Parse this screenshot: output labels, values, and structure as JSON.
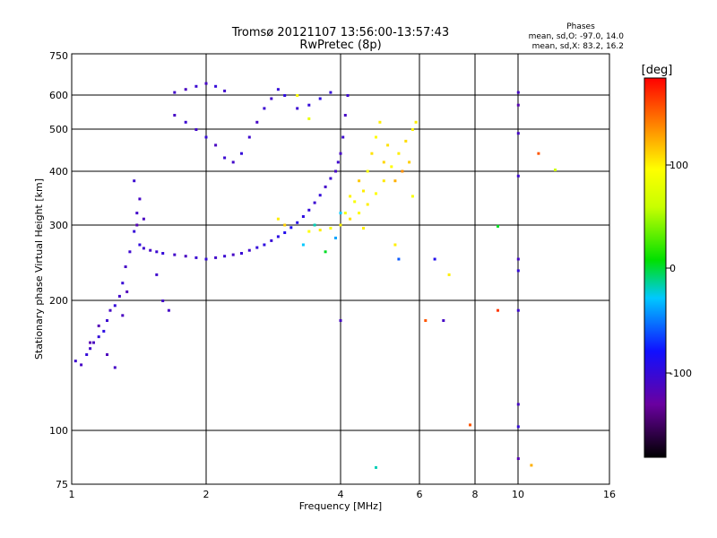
{
  "chart_data": {
    "type": "scatter",
    "title": "Tromsø 20121107 13:56:00-13:57:43",
    "subtitle": "RwPretec (8p)",
    "xlabel": "Frequency [MHz]",
    "ylabel": "Stationary phase Virtual Height [km]",
    "xscale": "log",
    "yscale": "log",
    "xlim": [
      1,
      16
    ],
    "ylim": [
      75,
      750
    ],
    "x_ticks": [
      1,
      2,
      4,
      6,
      8,
      10,
      16
    ],
    "x_tick_labels": [
      "1",
      "2",
      "4",
      "6",
      "8",
      "10",
      "16"
    ],
    "y_ticks": [
      75,
      100,
      200,
      300,
      400,
      500,
      600,
      750
    ],
    "y_tick_labels": [
      "75",
      "100",
      "200",
      "300",
      "400",
      "500",
      "600",
      "750"
    ],
    "grid": true,
    "phase_info": {
      "title": "Phases",
      "line1": "mean, sd,O: -97.0, 14.0",
      "line2": "mean, sd,X:  83.2, 16.2"
    },
    "colorbar": {
      "label": "[deg]",
      "range": [
        -180,
        180
      ],
      "ticks": [
        100,
        0,
        -100
      ],
      "tick_labels": [
        "100",
        "0",
        "-100"
      ]
    },
    "series": [
      {
        "points": [
          [
            1.02,
            145,
            -105
          ],
          [
            1.05,
            142,
            -110
          ],
          [
            1.08,
            150,
            -100
          ],
          [
            1.1,
            155,
            -108
          ],
          [
            1.12,
            160,
            -112
          ],
          [
            1.15,
            165,
            -100
          ],
          [
            1.18,
            170,
            -95
          ],
          [
            1.2,
            180,
            -105
          ],
          [
            1.22,
            190,
            -110
          ],
          [
            1.25,
            195,
            -100
          ],
          [
            1.28,
            205,
            -108
          ],
          [
            1.3,
            220,
            -102
          ],
          [
            1.32,
            240,
            -110
          ],
          [
            1.35,
            260,
            -105
          ],
          [
            1.38,
            290,
            -100
          ],
          [
            1.4,
            320,
            -108
          ],
          [
            1.42,
            345,
            -110
          ],
          [
            1.38,
            380,
            -104
          ],
          [
            1.42,
            270,
            -98
          ],
          [
            1.45,
            265,
            -106
          ],
          [
            1.5,
            262,
            -110
          ],
          [
            1.55,
            260,
            -104
          ],
          [
            1.6,
            258,
            -100
          ],
          [
            1.7,
            256,
            -108
          ],
          [
            1.8,
            254,
            -112
          ],
          [
            1.9,
            252,
            -104
          ],
          [
            2.0,
            250,
            -100
          ],
          [
            2.1,
            252,
            -108
          ],
          [
            2.2,
            254,
            -104
          ],
          [
            2.3,
            256,
            -110
          ],
          [
            2.4,
            258,
            -102
          ],
          [
            2.5,
            262,
            -106
          ],
          [
            2.6,
            266,
            -100
          ],
          [
            2.7,
            270,
            -96
          ],
          [
            2.8,
            276,
            -102
          ],
          [
            2.9,
            282,
            -94
          ],
          [
            3.0,
            288,
            -90
          ],
          [
            3.1,
            296,
            -86
          ],
          [
            3.2,
            304,
            -92
          ],
          [
            3.3,
            314,
            -96
          ],
          [
            3.4,
            325,
            -100
          ],
          [
            3.5,
            338,
            -104
          ],
          [
            3.6,
            352,
            -100
          ],
          [
            3.7,
            368,
            -108
          ],
          [
            3.8,
            385,
            -104
          ],
          [
            3.9,
            400,
            -110
          ],
          [
            3.95,
            420,
            -106
          ],
          [
            4.0,
            440,
            -110
          ],
          [
            4.05,
            480,
            -104
          ],
          [
            4.1,
            540,
            -110
          ],
          [
            4.15,
            600,
            -106
          ],
          [
            1.7,
            610,
            -108
          ],
          [
            1.8,
            620,
            -112
          ],
          [
            1.9,
            630,
            -104
          ],
          [
            2.0,
            640,
            -110
          ],
          [
            2.1,
            630,
            -100
          ],
          [
            2.2,
            615,
            -106
          ],
          [
            1.7,
            540,
            -110
          ],
          [
            1.8,
            520,
            -104
          ],
          [
            1.9,
            500,
            -108
          ],
          [
            2.0,
            480,
            -100
          ],
          [
            2.1,
            460,
            -112
          ],
          [
            2.2,
            430,
            -104
          ],
          [
            2.3,
            420,
            -108
          ],
          [
            2.4,
            440,
            -100
          ],
          [
            2.5,
            480,
            -106
          ],
          [
            2.6,
            520,
            -110
          ],
          [
            2.7,
            560,
            -104
          ],
          [
            2.8,
            590,
            -108
          ],
          [
            2.9,
            620,
            -100
          ],
          [
            3.0,
            600,
            -96
          ],
          [
            3.2,
            560,
            -104
          ],
          [
            3.4,
            570,
            -100
          ],
          [
            3.6,
            590,
            -96
          ],
          [
            3.8,
            610,
            -100
          ],
          [
            1.1,
            160,
            -120
          ],
          [
            1.15,
            175,
            -118
          ],
          [
            1.2,
            150,
            -115
          ],
          [
            1.3,
            185,
            -112
          ],
          [
            1.25,
            140,
            -110
          ],
          [
            1.33,
            210,
            -116
          ],
          [
            1.4,
            300,
            -118
          ],
          [
            1.45,
            310,
            -112
          ],
          [
            1.6,
            200,
            -108
          ],
          [
            1.65,
            190,
            -110
          ],
          [
            1.55,
            230,
            -106
          ],
          [
            3.3,
            270,
            -30
          ],
          [
            3.5,
            300,
            -20
          ],
          [
            3.7,
            260,
            0
          ],
          [
            3.9,
            280,
            -40
          ],
          [
            4.0,
            320,
            -30
          ]
        ]
      },
      {
        "points": [
          [
            3.4,
            290,
            95
          ],
          [
            3.6,
            292,
            100
          ],
          [
            3.8,
            295,
            92
          ],
          [
            4.0,
            300,
            98
          ],
          [
            4.2,
            310,
            104
          ],
          [
            4.4,
            320,
            96
          ],
          [
            4.6,
            335,
            100
          ],
          [
            4.8,
            355,
            94
          ],
          [
            5.0,
            380,
            102
          ],
          [
            5.2,
            410,
            96
          ],
          [
            5.4,
            440,
            100
          ],
          [
            5.6,
            470,
            106
          ],
          [
            5.8,
            500,
            98
          ],
          [
            4.5,
            360,
            100
          ],
          [
            4.6,
            400,
            92
          ],
          [
            4.7,
            440,
            104
          ],
          [
            4.8,
            480,
            96
          ],
          [
            4.9,
            520,
            100
          ],
          [
            5.0,
            420,
            108
          ],
          [
            5.3,
            380,
            120
          ],
          [
            5.5,
            400,
            130
          ],
          [
            5.7,
            420,
            110
          ],
          [
            4.3,
            340,
            90
          ],
          [
            4.1,
            320,
            88
          ],
          [
            3.2,
            600,
            94
          ],
          [
            3.4,
            530,
            80
          ],
          [
            3.0,
            300,
            110
          ],
          [
            2.9,
            310,
            100
          ],
          [
            4.4,
            380,
            112
          ],
          [
            4.2,
            350,
            98
          ],
          [
            5.1,
            460,
            104
          ],
          [
            5.9,
            520,
            100
          ]
        ]
      },
      {
        "points": [
          [
            10.0,
            610,
            -110
          ],
          [
            10.0,
            570,
            -120
          ],
          [
            10.0,
            490,
            -110
          ],
          [
            10.0,
            390,
            -105
          ],
          [
            10.0,
            250,
            -110
          ],
          [
            10.0,
            235,
            -100
          ],
          [
            10.0,
            190,
            -105
          ],
          [
            10.0,
            115,
            -110
          ],
          [
            10.0,
            102,
            -100
          ],
          [
            10.0,
            86,
            -120
          ],
          [
            10.7,
            83,
            120
          ],
          [
            11.1,
            440,
            150
          ],
          [
            12.1,
            403,
            60
          ],
          [
            9.0,
            190,
            160
          ],
          [
            7.8,
            103,
            150
          ],
          [
            6.2,
            180,
            150
          ],
          [
            6.8,
            180,
            -110
          ],
          [
            6.5,
            250,
            -90
          ],
          [
            7.0,
            230,
            100
          ],
          [
            4.0,
            180,
            -110
          ],
          [
            5.3,
            270,
            100
          ],
          [
            5.4,
            250,
            -60
          ],
          [
            4.8,
            82,
            -20
          ],
          [
            4.5,
            295,
            100
          ],
          [
            5.8,
            350,
            90
          ],
          [
            9.0,
            298,
            0
          ]
        ]
      }
    ]
  }
}
